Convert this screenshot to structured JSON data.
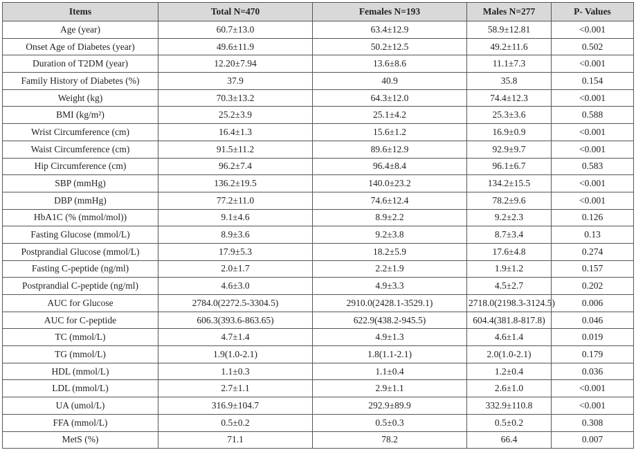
{
  "table": {
    "header": [
      "Items",
      "Total N=470",
      "Females N=193",
      "Males N=277",
      "P- Values"
    ],
    "rows": [
      [
        "Age (year)",
        "60.7±13.0",
        "63.4±12.9",
        "58.9±12.81",
        "<0.001"
      ],
      [
        "Onset Age of Diabetes (year)",
        "49.6±11.9",
        "50.2±12.5",
        "49.2±11.6",
        "0.502"
      ],
      [
        "Duration of T2DM (year)",
        "12.20±7.94",
        "13.6±8.6",
        "11.1±7.3",
        "<0.001"
      ],
      [
        "Family History of Diabetes (%)",
        "37.9",
        "40.9",
        "35.8",
        "0.154"
      ],
      [
        "Weight (kg)",
        "70.3±13.2",
        "64.3±12.0",
        "74.4±12.3",
        "<0.001"
      ],
      [
        "BMI (kg/m²)",
        "25.2±3.9",
        "25.1±4.2",
        "25.3±3.6",
        "0.588"
      ],
      [
        "Wrist Circumference (cm)",
        "16.4±1.3",
        "15.6±1.2",
        "16.9±0.9",
        "<0.001"
      ],
      [
        "Waist Circumference (cm)",
        "91.5±11.2",
        "89.6±12.9",
        "92.9±9.7",
        "<0.001"
      ],
      [
        "Hip Circumference (cm)",
        "96.2±7.4",
        "96.4±8.4",
        "96.1±6.7",
        "0.583"
      ],
      [
        "SBP (mmHg)",
        "136.2±19.5",
        "140.0±23.2",
        "134.2±15.5",
        "<0.001"
      ],
      [
        "DBP (mmHg)",
        "77.2±11.0",
        "74.6±12.4",
        "78.2±9.6",
        "<0.001"
      ],
      [
        "HbA1C (% (mmol/mol))",
        "9.1±4.6",
        "8.9±2.2",
        "9.2±2.3",
        "0.126"
      ],
      [
        "Fasting Glucose (mmol/L)",
        "8.9±3.6",
        "9.2±3.8",
        "8.7±3.4",
        "0.13"
      ],
      [
        "Postprandial Glucose (mmol/L)",
        "17.9±5.3",
        "18.2±5.9",
        "17.6±4.8",
        "0.274"
      ],
      [
        "Fasting C-peptide (ng/ml)",
        "2.0±1.7",
        "2.2±1.9",
        "1.9±1.2",
        "0.157"
      ],
      [
        "Postprandial C-peptide (ng/ml)",
        "4.6±3.0",
        "4.9±3.3",
        "4.5±2.7",
        "0.202"
      ],
      [
        "AUC for Glucose",
        "2784.0(2272.5-3304.5)",
        "2910.0(2428.1-3529.1)",
        "2718.0(2198.3-3124.5)",
        "0.006"
      ],
      [
        "AUC for C-peptide",
        "606.3(393.6-863.65)",
        "622.9(438.2-945.5)",
        "604.4(381.8-817.8)",
        "0.046"
      ],
      [
        "TC (mmol/L)",
        "4.7±1.4",
        "4.9±1.3",
        "4.6±1.4",
        "0.019"
      ],
      [
        "TG (mmol/L)",
        "1.9(1.0-2.1)",
        "1.8(1.1-2.1)",
        "2.0(1.0-2.1)",
        "0.179"
      ],
      [
        "HDL (mmol/L)",
        "1.1±0.3",
        "1.1±0.4",
        "1.2±0.4",
        "0.036"
      ],
      [
        "LDL (mmol/L)",
        "2.7±1.1",
        "2.9±1.1",
        "2.6±1.0",
        "<0.001"
      ],
      [
        "UA (umol/L)",
        "316.9±104.7",
        "292.9±89.9",
        "332.9±110.8",
        "<0.001"
      ],
      [
        "FFA (mmol/L)",
        "0.5±0.2",
        "0.5±0.3",
        "0.5±0.2",
        "0.308"
      ],
      [
        "MetS (%)",
        "71.1",
        "78.2",
        "66.4",
        "0.007"
      ]
    ]
  }
}
